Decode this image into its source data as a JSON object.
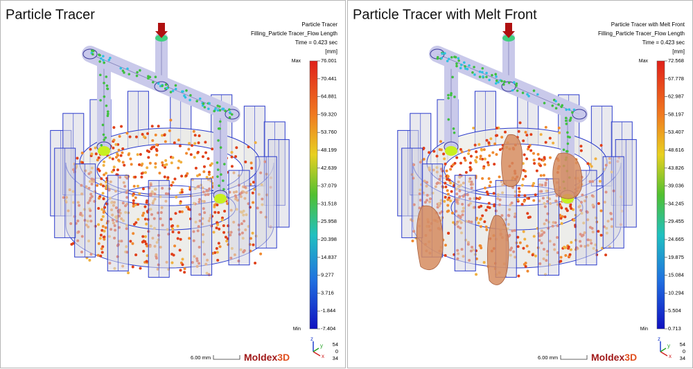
{
  "panels": [
    {
      "title": "Particle Tracer",
      "header": [
        "Particle Tracer",
        "Filling_Particle Tracer_Flow Length",
        "Time = 0.423 sec",
        "[mm]"
      ],
      "max_label": "Max",
      "min_label": "Min",
      "scale_labels": [
        "76.001",
        "70.441",
        "64.881",
        "59.320",
        "53.760",
        "48.199",
        "42.639",
        "37.079",
        "31.518",
        "25.958",
        "20.398",
        "14.837",
        "9.277",
        "3.716",
        "-1.844",
        "-7.404"
      ],
      "scale_bar": "6.00 mm",
      "logo": {
        "name": "Moldex",
        "suffix": "3D"
      },
      "axes": {
        "z": "z",
        "y": "y",
        "x": "x"
      },
      "view_angles": [
        "54",
        "0",
        "34"
      ],
      "melt_front": false
    },
    {
      "title": "Particle Tracer with Melt Front",
      "header": [
        "Particle Tracer with Melt Front",
        "Filling_Particle Tracer_Flow Length",
        "Time = 0.423 sec",
        "[mm]"
      ],
      "max_label": "Max",
      "min_label": "Min",
      "scale_labels": [
        "72.568",
        "67.778",
        "62.987",
        "58.197",
        "53.407",
        "48.616",
        "43.826",
        "39.036",
        "34.245",
        "29.455",
        "24.665",
        "19.875",
        "15.084",
        "10.294",
        "5.504",
        "0.713"
      ],
      "scale_bar": "6.00 mm",
      "logo": {
        "name": "Moldex",
        "suffix": "3D"
      },
      "axes": {
        "z": "z",
        "y": "y",
        "x": "x"
      },
      "view_angles": [
        "54",
        "0",
        "34"
      ],
      "melt_front": true
    }
  ]
}
